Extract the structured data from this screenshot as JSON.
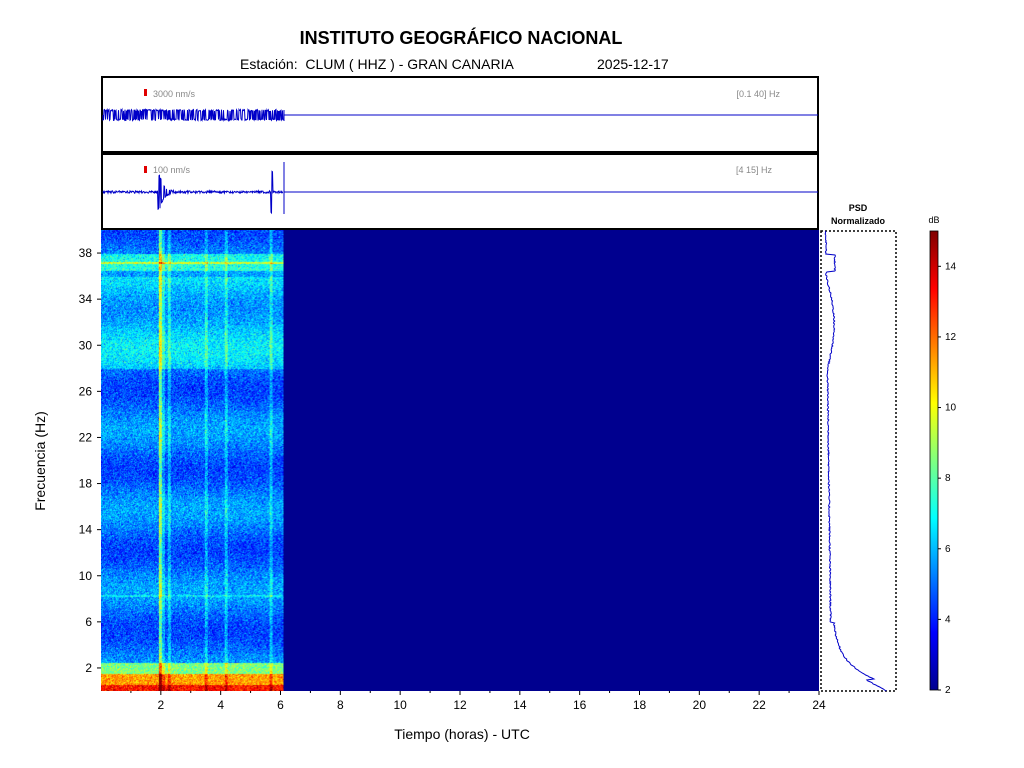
{
  "header": {
    "title": "INSTITUTO GEOGRÁFICO NACIONAL",
    "station_line": "Estación:  CLUM ( HHZ ) - GRAN CANARIA",
    "date": "2025-12-17"
  },
  "chart_data": [
    {
      "type": "line",
      "panel": "trace-broadband",
      "scale_label": "3000 nm/s",
      "filter_label": "[0.1 40] Hz",
      "x_range_hours": [
        0,
        24
      ],
      "data_until_hours": 6.1,
      "color": "#0000c8"
    },
    {
      "type": "line",
      "panel": "trace-filtered",
      "scale_label": "100 nm/s",
      "filter_label": "[4 15] Hz",
      "x_range_hours": [
        0,
        24
      ],
      "data_until_hours": 6.1,
      "events_hours": [
        1.97,
        5.7
      ],
      "color": "#0000c8"
    },
    {
      "type": "heatmap",
      "panel": "spectrogram",
      "xlabel": "Tiempo (horas) - UTC",
      "ylabel": "Frecuencia  (Hz)",
      "xlim": [
        0,
        24
      ],
      "ylim": [
        0,
        40
      ],
      "x_ticks": [
        2,
        4,
        6,
        8,
        10,
        12,
        14,
        16,
        18,
        20,
        22,
        24
      ],
      "y_ticks": [
        2,
        6,
        10,
        14,
        18,
        22,
        26,
        30,
        34,
        38
      ],
      "data_until_hours": 6.1,
      "colormap": "jet",
      "background_color": "#00008f"
    },
    {
      "type": "line",
      "panel": "psd",
      "title_line1": "PSD",
      "title_line2": "Normalizado",
      "ylim": [
        0,
        40
      ],
      "color": "#0000c8"
    },
    {
      "type": "heatmap",
      "panel": "colorbar",
      "unit_label": "dB",
      "range": [
        2,
        15
      ],
      "ticks": [
        2,
        4,
        6,
        8,
        10,
        12,
        14
      ]
    }
  ]
}
